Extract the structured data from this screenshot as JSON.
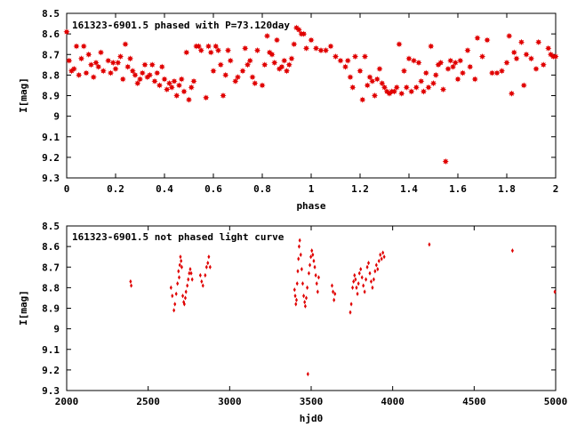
{
  "chart_data": [
    {
      "type": "scatter",
      "title": "161323-6901.5 phased with P=73.120day",
      "xlabel": "phase",
      "ylabel": "I[mag]",
      "xlim": [
        0,
        2
      ],
      "ylim": [
        8.5,
        9.3
      ],
      "y_inverted": true,
      "xticks": [
        "0",
        "0.2",
        "0.4",
        "0.6",
        "0.8",
        "1",
        "1.2",
        "1.4",
        "1.6",
        "1.8",
        "2"
      ],
      "yticks": [
        "8.5",
        "8.6",
        "8.7",
        "8.8",
        "8.9",
        "9",
        "9.1",
        "9.2",
        "9.3"
      ],
      "marker_color": "#e00000",
      "marker": "star",
      "grid": false,
      "points": [
        [
          0.0,
          8.59
        ],
        [
          0.01,
          8.73
        ],
        [
          0.02,
          8.78
        ],
        [
          0.03,
          8.77
        ],
        [
          0.04,
          8.66
        ],
        [
          0.05,
          8.8
        ],
        [
          0.06,
          8.72
        ],
        [
          0.07,
          8.66
        ],
        [
          0.08,
          8.79
        ],
        [
          0.09,
          8.7
        ],
        [
          0.1,
          8.75
        ],
        [
          0.11,
          8.81
        ],
        [
          0.12,
          8.74
        ],
        [
          0.13,
          8.76
        ],
        [
          0.14,
          8.69
        ],
        [
          0.15,
          8.78
        ],
        [
          0.17,
          8.73
        ],
        [
          0.18,
          8.79
        ],
        [
          0.19,
          8.74
        ],
        [
          0.2,
          8.77
        ],
        [
          0.21,
          8.74
        ],
        [
          0.22,
          8.71
        ],
        [
          0.23,
          8.82
        ],
        [
          0.24,
          8.65
        ],
        [
          0.25,
          8.76
        ],
        [
          0.26,
          8.72
        ],
        [
          0.27,
          8.78
        ],
        [
          0.28,
          8.8
        ],
        [
          0.29,
          8.84
        ],
        [
          0.3,
          8.82
        ],
        [
          0.31,
          8.79
        ],
        [
          0.32,
          8.75
        ],
        [
          0.33,
          8.81
        ],
        [
          0.34,
          8.8
        ],
        [
          0.35,
          8.75
        ],
        [
          0.36,
          8.83
        ],
        [
          0.37,
          8.79
        ],
        [
          0.38,
          8.85
        ],
        [
          0.39,
          8.76
        ],
        [
          0.4,
          8.82
        ],
        [
          0.41,
          8.87
        ],
        [
          0.42,
          8.84
        ],
        [
          0.43,
          8.86
        ],
        [
          0.44,
          8.83
        ],
        [
          0.45,
          8.9
        ],
        [
          0.46,
          8.85
        ],
        [
          0.47,
          8.82
        ],
        [
          0.48,
          8.88
        ],
        [
          0.49,
          8.69
        ],
        [
          0.5,
          8.92
        ],
        [
          0.51,
          8.86
        ],
        [
          0.52,
          8.83
        ],
        [
          0.53,
          8.66
        ],
        [
          0.54,
          8.66
        ],
        [
          0.55,
          8.68
        ],
        [
          0.57,
          8.91
        ],
        [
          0.58,
          8.66
        ],
        [
          0.59,
          8.69
        ],
        [
          0.6,
          8.78
        ],
        [
          0.61,
          8.66
        ],
        [
          0.62,
          8.68
        ],
        [
          0.63,
          8.75
        ],
        [
          0.64,
          8.9
        ],
        [
          0.65,
          8.8
        ],
        [
          0.66,
          8.68
        ],
        [
          0.67,
          8.73
        ],
        [
          0.69,
          8.83
        ],
        [
          0.7,
          8.81
        ],
        [
          0.72,
          8.78
        ],
        [
          0.73,
          8.67
        ],
        [
          0.74,
          8.75
        ],
        [
          0.75,
          8.73
        ],
        [
          0.76,
          8.81
        ],
        [
          0.77,
          8.84
        ],
        [
          0.78,
          8.68
        ],
        [
          0.8,
          8.85
        ],
        [
          0.81,
          8.75
        ],
        [
          0.82,
          8.61
        ],
        [
          0.83,
          8.69
        ],
        [
          0.84,
          8.7
        ],
        [
          0.85,
          8.74
        ],
        [
          0.86,
          8.63
        ],
        [
          0.87,
          8.77
        ],
        [
          0.88,
          8.76
        ],
        [
          0.89,
          8.73
        ],
        [
          0.9,
          8.78
        ],
        [
          0.91,
          8.75
        ],
        [
          0.92,
          8.72
        ],
        [
          0.93,
          8.65
        ],
        [
          0.94,
          8.57
        ],
        [
          0.95,
          8.58
        ],
        [
          0.96,
          8.6
        ],
        [
          0.97,
          8.6
        ],
        [
          0.98,
          8.67
        ],
        [
          1.0,
          8.63
        ],
        [
          1.02,
          8.67
        ],
        [
          1.04,
          8.68
        ],
        [
          1.06,
          8.68
        ],
        [
          1.08,
          8.66
        ],
        [
          1.1,
          8.71
        ],
        [
          1.12,
          8.73
        ],
        [
          1.14,
          8.76
        ],
        [
          1.15,
          8.73
        ],
        [
          1.16,
          8.81
        ],
        [
          1.17,
          8.86
        ],
        [
          1.18,
          8.71
        ],
        [
          1.2,
          8.78
        ],
        [
          1.21,
          8.92
        ],
        [
          1.22,
          8.71
        ],
        [
          1.23,
          8.85
        ],
        [
          1.24,
          8.81
        ],
        [
          1.25,
          8.83
        ],
        [
          1.26,
          8.9
        ],
        [
          1.27,
          8.82
        ],
        [
          1.28,
          8.77
        ],
        [
          1.29,
          8.84
        ],
        [
          1.3,
          8.86
        ],
        [
          1.31,
          8.88
        ],
        [
          1.32,
          8.89
        ],
        [
          1.33,
          8.88
        ],
        [
          1.34,
          8.88
        ],
        [
          1.35,
          8.86
        ],
        [
          1.36,
          8.65
        ],
        [
          1.37,
          8.89
        ],
        [
          1.38,
          8.78
        ],
        [
          1.39,
          8.86
        ],
        [
          1.4,
          8.72
        ],
        [
          1.41,
          8.88
        ],
        [
          1.42,
          8.73
        ],
        [
          1.43,
          8.86
        ],
        [
          1.44,
          8.74
        ],
        [
          1.45,
          8.83
        ],
        [
          1.46,
          8.88
        ],
        [
          1.47,
          8.79
        ],
        [
          1.48,
          8.86
        ],
        [
          1.49,
          8.66
        ],
        [
          1.5,
          8.84
        ],
        [
          1.51,
          8.8
        ],
        [
          1.52,
          8.75
        ],
        [
          1.53,
          8.74
        ],
        [
          1.54,
          8.87
        ],
        [
          1.55,
          9.22
        ],
        [
          1.56,
          8.77
        ],
        [
          1.57,
          8.73
        ],
        [
          1.58,
          8.76
        ],
        [
          1.59,
          8.74
        ],
        [
          1.6,
          8.82
        ],
        [
          1.61,
          8.73
        ],
        [
          1.62,
          8.79
        ],
        [
          1.64,
          8.68
        ],
        [
          1.65,
          8.76
        ],
        [
          1.67,
          8.82
        ],
        [
          1.68,
          8.62
        ],
        [
          1.7,
          8.71
        ],
        [
          1.72,
          8.63
        ],
        [
          1.74,
          8.79
        ],
        [
          1.76,
          8.79
        ],
        [
          1.78,
          8.78
        ],
        [
          1.8,
          8.74
        ],
        [
          1.81,
          8.61
        ],
        [
          1.82,
          8.89
        ],
        [
          1.83,
          8.69
        ],
        [
          1.84,
          8.72
        ],
        [
          1.86,
          8.64
        ],
        [
          1.87,
          8.85
        ],
        [
          1.88,
          8.7
        ],
        [
          1.9,
          8.72
        ],
        [
          1.92,
          8.77
        ],
        [
          1.93,
          8.64
        ],
        [
          1.95,
          8.75
        ],
        [
          1.97,
          8.67
        ],
        [
          1.98,
          8.7
        ],
        [
          1.99,
          8.71
        ],
        [
          2.0,
          8.71
        ]
      ]
    },
    {
      "type": "scatter",
      "title": "161323-6901.5 not phased light curve",
      "xlabel": "hjd0",
      "ylabel": "I[mag]",
      "xlim": [
        2000,
        5000
      ],
      "ylim": [
        8.5,
        9.3
      ],
      "y_inverted": true,
      "xticks": [
        "2000",
        "2500",
        "3000",
        "3500",
        "4000",
        "4500",
        "5000"
      ],
      "yticks": [
        "8.5",
        "8.6",
        "8.7",
        "8.8",
        "8.9",
        "9",
        "9.1",
        "9.2",
        "9.3"
      ],
      "marker_color": "#e00000",
      "marker": "diamond",
      "grid": false,
      "points": [
        [
          2392,
          8.77
        ],
        [
          2396,
          8.79
        ],
        [
          2640,
          8.8
        ],
        [
          2648,
          8.84
        ],
        [
          2658,
          8.91
        ],
        [
          2664,
          8.88
        ],
        [
          2672,
          8.83
        ],
        [
          2680,
          8.78
        ],
        [
          2686,
          8.72
        ],
        [
          2690,
          8.75
        ],
        [
          2694,
          8.69
        ],
        [
          2698,
          8.65
        ],
        [
          2702,
          8.67
        ],
        [
          2706,
          8.7
        ],
        [
          2712,
          8.84
        ],
        [
          2718,
          8.87
        ],
        [
          2722,
          8.88
        ],
        [
          2728,
          8.85
        ],
        [
          2732,
          8.82
        ],
        [
          2740,
          8.79
        ],
        [
          2746,
          8.76
        ],
        [
          2752,
          8.73
        ],
        [
          2758,
          8.71
        ],
        [
          2764,
          8.73
        ],
        [
          2770,
          8.76
        ],
        [
          2820,
          8.74
        ],
        [
          2828,
          8.77
        ],
        [
          2836,
          8.79
        ],
        [
          2850,
          8.74
        ],
        [
          2858,
          8.7
        ],
        [
          2866,
          8.68
        ],
        [
          2872,
          8.65
        ],
        [
          2880,
          8.7
        ],
        [
          3398,
          8.81
        ],
        [
          3402,
          8.84
        ],
        [
          3406,
          8.88
        ],
        [
          3410,
          8.86
        ],
        [
          3414,
          8.78
        ],
        [
          3418,
          8.72
        ],
        [
          3422,
          8.66
        ],
        [
          3426,
          8.6
        ],
        [
          3430,
          8.57
        ],
        [
          3436,
          8.64
        ],
        [
          3442,
          8.71
        ],
        [
          3448,
          8.78
        ],
        [
          3454,
          8.84
        ],
        [
          3460,
          8.87
        ],
        [
          3464,
          8.89
        ],
        [
          3470,
          8.85
        ],
        [
          3476,
          8.8
        ],
        [
          3480,
          9.22
        ],
        [
          3486,
          8.73
        ],
        [
          3492,
          8.69
        ],
        [
          3498,
          8.65
        ],
        [
          3504,
          8.62
        ],
        [
          3510,
          8.64
        ],
        [
          3516,
          8.67
        ],
        [
          3522,
          8.7
        ],
        [
          3528,
          8.74
        ],
        [
          3534,
          8.78
        ],
        [
          3540,
          8.82
        ],
        [
          3546,
          8.75
        ],
        [
          3628,
          8.79
        ],
        [
          3634,
          8.82
        ],
        [
          3640,
          8.86
        ],
        [
          3646,
          8.83
        ],
        [
          3740,
          8.92
        ],
        [
          3746,
          8.88
        ],
        [
          3754,
          8.8
        ],
        [
          3760,
          8.77
        ],
        [
          3766,
          8.74
        ],
        [
          3772,
          8.76
        ],
        [
          3778,
          8.8
        ],
        [
          3784,
          8.83
        ],
        [
          3790,
          8.78
        ],
        [
          3796,
          8.73
        ],
        [
          3804,
          8.71
        ],
        [
          3812,
          8.75
        ],
        [
          3820,
          8.79
        ],
        [
          3828,
          8.82
        ],
        [
          3836,
          8.76
        ],
        [
          3844,
          8.7
        ],
        [
          3852,
          8.68
        ],
        [
          3860,
          8.73
        ],
        [
          3868,
          8.77
        ],
        [
          3876,
          8.8
        ],
        [
          3884,
          8.76
        ],
        [
          3892,
          8.72
        ],
        [
          3900,
          8.69
        ],
        [
          3908,
          8.71
        ],
        [
          3916,
          8.67
        ],
        [
          3924,
          8.64
        ],
        [
          3932,
          8.66
        ],
        [
          3940,
          8.63
        ],
        [
          3948,
          8.65
        ],
        [
          4225,
          8.59
        ],
        [
          4735,
          8.62
        ],
        [
          4995,
          8.82
        ]
      ]
    }
  ]
}
